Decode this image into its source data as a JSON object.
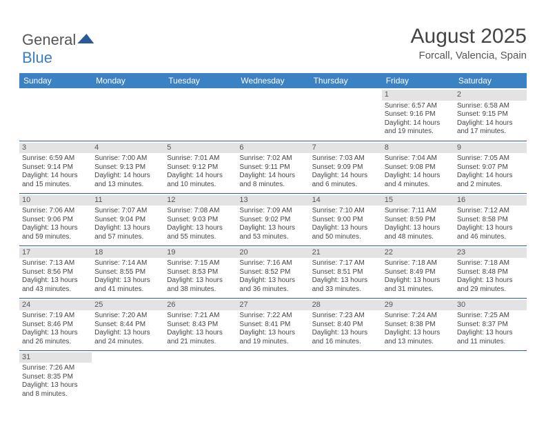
{
  "logo": {
    "text1": "General",
    "text2": "Blue"
  },
  "title": "August 2025",
  "location": "Forcall, Valencia, Spain",
  "headers": [
    "Sunday",
    "Monday",
    "Tuesday",
    "Wednesday",
    "Thursday",
    "Friday",
    "Saturday"
  ],
  "colors": {
    "header_bg": "#3b82c4",
    "header_fg": "#ffffff",
    "border": "#2a5a9a",
    "daynum_bg": "#e3e3e3"
  },
  "weeks": [
    [
      null,
      null,
      null,
      null,
      null,
      {
        "n": "1",
        "sr": "6:57 AM",
        "ss": "9:16 PM",
        "dl1": "14 hours",
        "dl2": "and 19 minutes."
      },
      {
        "n": "2",
        "sr": "6:58 AM",
        "ss": "9:15 PM",
        "dl1": "14 hours",
        "dl2": "and 17 minutes."
      }
    ],
    [
      {
        "n": "3",
        "sr": "6:59 AM",
        "ss": "9:14 PM",
        "dl1": "14 hours",
        "dl2": "and 15 minutes."
      },
      {
        "n": "4",
        "sr": "7:00 AM",
        "ss": "9:13 PM",
        "dl1": "14 hours",
        "dl2": "and 13 minutes."
      },
      {
        "n": "5",
        "sr": "7:01 AM",
        "ss": "9:12 PM",
        "dl1": "14 hours",
        "dl2": "and 10 minutes."
      },
      {
        "n": "6",
        "sr": "7:02 AM",
        "ss": "9:11 PM",
        "dl1": "14 hours",
        "dl2": "and 8 minutes."
      },
      {
        "n": "7",
        "sr": "7:03 AM",
        "ss": "9:09 PM",
        "dl1": "14 hours",
        "dl2": "and 6 minutes."
      },
      {
        "n": "8",
        "sr": "7:04 AM",
        "ss": "9:08 PM",
        "dl1": "14 hours",
        "dl2": "and 4 minutes."
      },
      {
        "n": "9",
        "sr": "7:05 AM",
        "ss": "9:07 PM",
        "dl1": "14 hours",
        "dl2": "and 2 minutes."
      }
    ],
    [
      {
        "n": "10",
        "sr": "7:06 AM",
        "ss": "9:06 PM",
        "dl1": "13 hours",
        "dl2": "and 59 minutes."
      },
      {
        "n": "11",
        "sr": "7:07 AM",
        "ss": "9:04 PM",
        "dl1": "13 hours",
        "dl2": "and 57 minutes."
      },
      {
        "n": "12",
        "sr": "7:08 AM",
        "ss": "9:03 PM",
        "dl1": "13 hours",
        "dl2": "and 55 minutes."
      },
      {
        "n": "13",
        "sr": "7:09 AM",
        "ss": "9:02 PM",
        "dl1": "13 hours",
        "dl2": "and 53 minutes."
      },
      {
        "n": "14",
        "sr": "7:10 AM",
        "ss": "9:00 PM",
        "dl1": "13 hours",
        "dl2": "and 50 minutes."
      },
      {
        "n": "15",
        "sr": "7:11 AM",
        "ss": "8:59 PM",
        "dl1": "13 hours",
        "dl2": "and 48 minutes."
      },
      {
        "n": "16",
        "sr": "7:12 AM",
        "ss": "8:58 PM",
        "dl1": "13 hours",
        "dl2": "and 46 minutes."
      }
    ],
    [
      {
        "n": "17",
        "sr": "7:13 AM",
        "ss": "8:56 PM",
        "dl1": "13 hours",
        "dl2": "and 43 minutes."
      },
      {
        "n": "18",
        "sr": "7:14 AM",
        "ss": "8:55 PM",
        "dl1": "13 hours",
        "dl2": "and 41 minutes."
      },
      {
        "n": "19",
        "sr": "7:15 AM",
        "ss": "8:53 PM",
        "dl1": "13 hours",
        "dl2": "and 38 minutes."
      },
      {
        "n": "20",
        "sr": "7:16 AM",
        "ss": "8:52 PM",
        "dl1": "13 hours",
        "dl2": "and 36 minutes."
      },
      {
        "n": "21",
        "sr": "7:17 AM",
        "ss": "8:51 PM",
        "dl1": "13 hours",
        "dl2": "and 33 minutes."
      },
      {
        "n": "22",
        "sr": "7:18 AM",
        "ss": "8:49 PM",
        "dl1": "13 hours",
        "dl2": "and 31 minutes."
      },
      {
        "n": "23",
        "sr": "7:18 AM",
        "ss": "8:48 PM",
        "dl1": "13 hours",
        "dl2": "and 29 minutes."
      }
    ],
    [
      {
        "n": "24",
        "sr": "7:19 AM",
        "ss": "8:46 PM",
        "dl1": "13 hours",
        "dl2": "and 26 minutes."
      },
      {
        "n": "25",
        "sr": "7:20 AM",
        "ss": "8:44 PM",
        "dl1": "13 hours",
        "dl2": "and 24 minutes."
      },
      {
        "n": "26",
        "sr": "7:21 AM",
        "ss": "8:43 PM",
        "dl1": "13 hours",
        "dl2": "and 21 minutes."
      },
      {
        "n": "27",
        "sr": "7:22 AM",
        "ss": "8:41 PM",
        "dl1": "13 hours",
        "dl2": "and 19 minutes."
      },
      {
        "n": "28",
        "sr": "7:23 AM",
        "ss": "8:40 PM",
        "dl1": "13 hours",
        "dl2": "and 16 minutes."
      },
      {
        "n": "29",
        "sr": "7:24 AM",
        "ss": "8:38 PM",
        "dl1": "13 hours",
        "dl2": "and 13 minutes."
      },
      {
        "n": "30",
        "sr": "7:25 AM",
        "ss": "8:37 PM",
        "dl1": "13 hours",
        "dl2": "and 11 minutes."
      }
    ],
    [
      {
        "n": "31",
        "sr": "7:26 AM",
        "ss": "8:35 PM",
        "dl1": "13 hours",
        "dl2": "and 8 minutes."
      },
      null,
      null,
      null,
      null,
      null,
      null
    ]
  ],
  "labels": {
    "sunrise_prefix": "Sunrise: ",
    "sunset_prefix": "Sunset: ",
    "daylight_prefix": "Daylight: "
  }
}
